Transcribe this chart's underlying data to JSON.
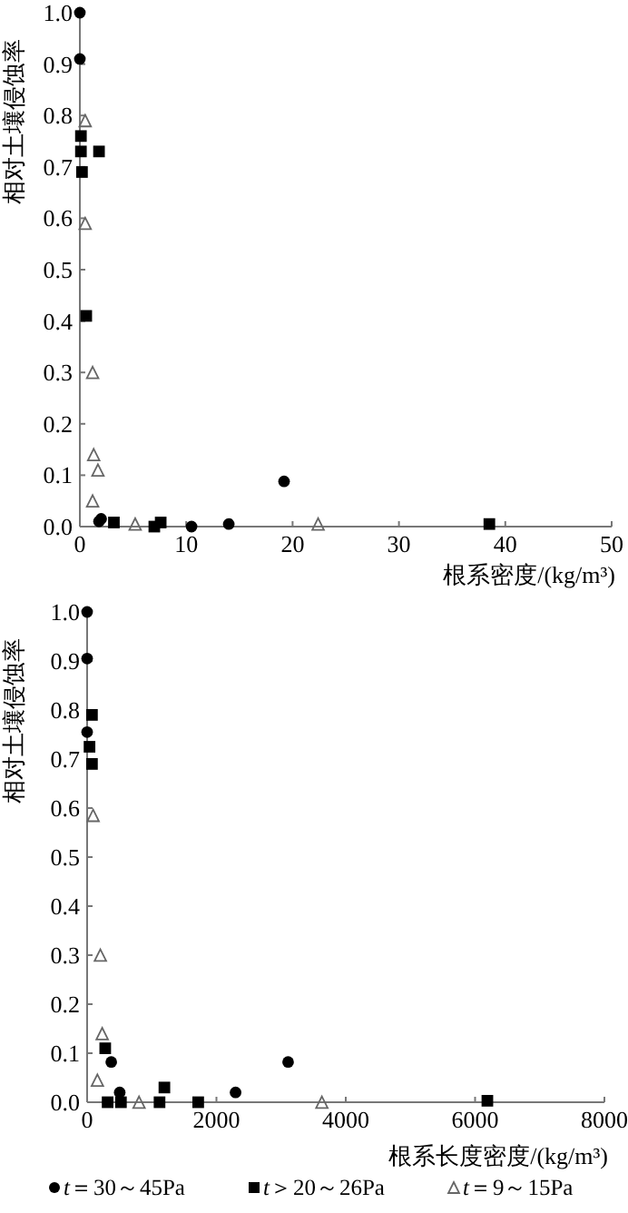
{
  "chart_data": [
    {
      "type": "scatter",
      "xlabel": "根系密度/(kg/m³)",
      "ylabel": "相对土壤侵蚀率",
      "xlim": [
        0,
        50
      ],
      "ylim": [
        0,
        1
      ],
      "xticks": [
        0,
        10,
        20,
        30,
        40,
        50
      ],
      "yticks": [
        {
          "value": 0,
          "label": "0.0"
        },
        {
          "value": 0.1,
          "label": "0.1"
        },
        {
          "value": 0.2,
          "label": "0.2"
        },
        {
          "value": 0.3,
          "label": "0.3"
        },
        {
          "value": 0.4,
          "label": "0.4"
        },
        {
          "value": 0.5,
          "label": "0.5"
        },
        {
          "value": 0.6,
          "label": "0.6"
        },
        {
          "value": 0.7,
          "label": "0.7"
        },
        {
          "value": 0.8,
          "label": "0.8"
        },
        {
          "value": 0.9,
          "label": "0.9"
        },
        {
          "value": 1,
          "label": "1.0"
        }
      ],
      "grid": false,
      "series": [
        {
          "color": "#000000",
          "marker": "circle",
          "x": [
            0,
            0,
            1.8,
            2.0,
            10.5,
            14,
            19.2
          ],
          "values": [
            1.0,
            0.91,
            0.01,
            0.015,
            0.0,
            0.005,
            0.088
          ]
        },
        {
          "color": "#000000",
          "marker": "square",
          "x": [
            0.1,
            0.1,
            0.2,
            1.8,
            0.6,
            3.2,
            7,
            7.6,
            38.5
          ],
          "values": [
            0.76,
            0.73,
            0.69,
            0.73,
            0.41,
            0.008,
            0.0,
            0.008,
            0.005
          ]
        },
        {
          "color": "#666666",
          "marker": "triangle",
          "x": [
            0.5,
            0.5,
            1.2,
            1.3,
            1.7,
            1.2,
            5.2,
            22.4
          ],
          "values": [
            0.79,
            0.59,
            0.3,
            0.14,
            0.11,
            0.05,
            0.005,
            0.005
          ]
        }
      ]
    },
    {
      "type": "scatter",
      "xlabel": "根系长度密度/(kg/m³)",
      "ylabel": "相对土壤侵蚀率",
      "xlim": [
        0,
        8000
      ],
      "ylim": [
        0,
        1
      ],
      "xticks": [
        0,
        2000,
        4000,
        6000,
        8000
      ],
      "yticks": [
        {
          "value": 0,
          "label": "0.0"
        },
        {
          "value": 0.1,
          "label": "0.1"
        },
        {
          "value": 0.2,
          "label": "0.2"
        },
        {
          "value": 0.3,
          "label": "0.3"
        },
        {
          "value": 0.4,
          "label": "0.4"
        },
        {
          "value": 0.5,
          "label": "0.5"
        },
        {
          "value": 0.6,
          "label": "0.6"
        },
        {
          "value": 0.7,
          "label": "0.7"
        },
        {
          "value": 0.8,
          "label": "0.8"
        },
        {
          "value": 0.9,
          "label": "0.9"
        },
        {
          "value": 1,
          "label": "1.0"
        }
      ],
      "grid": false,
      "legend": "bottom",
      "series": [
        {
          "name": "t＝30～45Pa",
          "color": "#000000",
          "marker": "circle",
          "x": [
            0,
            0,
            0,
            373,
            504,
            2296,
            3108
          ],
          "values": [
            1.0,
            0.905,
            0.755,
            0.082,
            0.02,
            0.02,
            0.082
          ]
        },
        {
          "name": "t＞20～26Pa",
          "color": "#000000",
          "marker": "square",
          "x": [
            75,
            37,
            75,
            280,
            317,
            523,
            1120,
            1195,
            1718,
            6190
          ],
          "values": [
            0.79,
            0.725,
            0.69,
            0.11,
            0.0,
            0.0,
            0.0,
            0.03,
            0.0,
            0.003
          ]
        },
        {
          "name": "t＝9～15Pa",
          "color": "#666666",
          "marker": "triangle",
          "x": [
            93,
            205,
            233,
            159,
            803,
            3631
          ],
          "values": [
            0.585,
            0.3,
            0.14,
            0.045,
            0.0,
            0.0
          ]
        }
      ]
    }
  ]
}
